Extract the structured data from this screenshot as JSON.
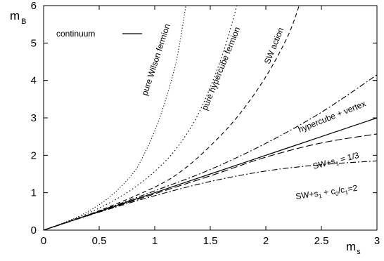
{
  "chart_data": {
    "type": "line",
    "xlabel": {
      "main": "m",
      "sub": "s"
    },
    "ylabel": {
      "main": "m",
      "sub": "B"
    },
    "xlim": [
      0,
      3
    ],
    "ylim": [
      0,
      6
    ],
    "xticks": [
      "0",
      "0.5",
      "1",
      "1.5",
      "2",
      "2.5",
      "3"
    ],
    "yticks": [
      "0",
      "1",
      "2",
      "3",
      "4",
      "5",
      "6"
    ],
    "grid": false,
    "legend": {
      "label": "continuum",
      "position": "top-left"
    },
    "series": [
      {
        "name": "continuum",
        "dash": "solid",
        "x": [
          0,
          0.5,
          1,
          1.5,
          2,
          2.5,
          3
        ],
        "y": [
          0,
          0.5,
          1,
          1.5,
          2,
          2.5,
          3
        ]
      },
      {
        "name": "pure Wilson fermion",
        "dash": "dotted-fine",
        "x": [
          0,
          0.2,
          0.4,
          0.6,
          0.8,
          0.9,
          1.0,
          1.1,
          1.2,
          1.28
        ],
        "y": [
          0,
          0.22,
          0.5,
          0.9,
          1.5,
          2.0,
          2.65,
          3.5,
          4.6,
          6.0
        ]
      },
      {
        "name": "pure hypercube fermion",
        "dash": "dotted",
        "x": [
          0,
          0.2,
          0.4,
          0.6,
          0.8,
          1.0,
          1.2,
          1.4,
          1.6,
          1.74
        ],
        "y": [
          0,
          0.21,
          0.45,
          0.74,
          1.1,
          1.57,
          2.2,
          3.15,
          4.6,
          6.0
        ]
      },
      {
        "name": "SW action",
        "dash": "dashed",
        "x": [
          0,
          0.5,
          1.0,
          1.25,
          1.5,
          1.75,
          2.0,
          2.2,
          2.3
        ],
        "y": [
          0,
          0.52,
          1.15,
          1.6,
          2.25,
          3.05,
          4.1,
          5.2,
          6.0
        ]
      },
      {
        "name": "hypercube + vertex",
        "dash": "dash-dot",
        "x": [
          0,
          0.5,
          1.0,
          1.5,
          2.0,
          2.5,
          3.0
        ],
        "y": [
          0,
          0.51,
          1.05,
          1.62,
          2.32,
          3.15,
          4.15
        ]
      },
      {
        "name": "SW+s1 = 1/3",
        "dash": "long-dash",
        "x": [
          0,
          0.5,
          1.0,
          1.5,
          2.0,
          2.5,
          3.0
        ],
        "y": [
          0,
          0.49,
          0.97,
          1.45,
          1.95,
          2.33,
          2.57
        ]
      },
      {
        "name": "SW+s1 + c0/c1=2",
        "dash": "dash-dot",
        "x": [
          0,
          0.5,
          1.0,
          1.5,
          2.0,
          2.5,
          3.0
        ],
        "y": [
          0,
          0.48,
          0.92,
          1.3,
          1.58,
          1.75,
          1.85
        ]
      }
    ],
    "annotations": {
      "wilson": "pure Wilson fermion",
      "hypercube": "pure hypercube fermion",
      "sw": "SW action",
      "vertex": "hypercube + vertex",
      "s13": {
        "a": "SW+s",
        "sub": "1",
        "b": " = 1/3"
      },
      "c0c1": {
        "a": "SW+s",
        "sub1": "1",
        "b": " + c",
        "sub2": "0",
        "c": "/c",
        "sub3": "1",
        "d": "=2"
      }
    }
  }
}
